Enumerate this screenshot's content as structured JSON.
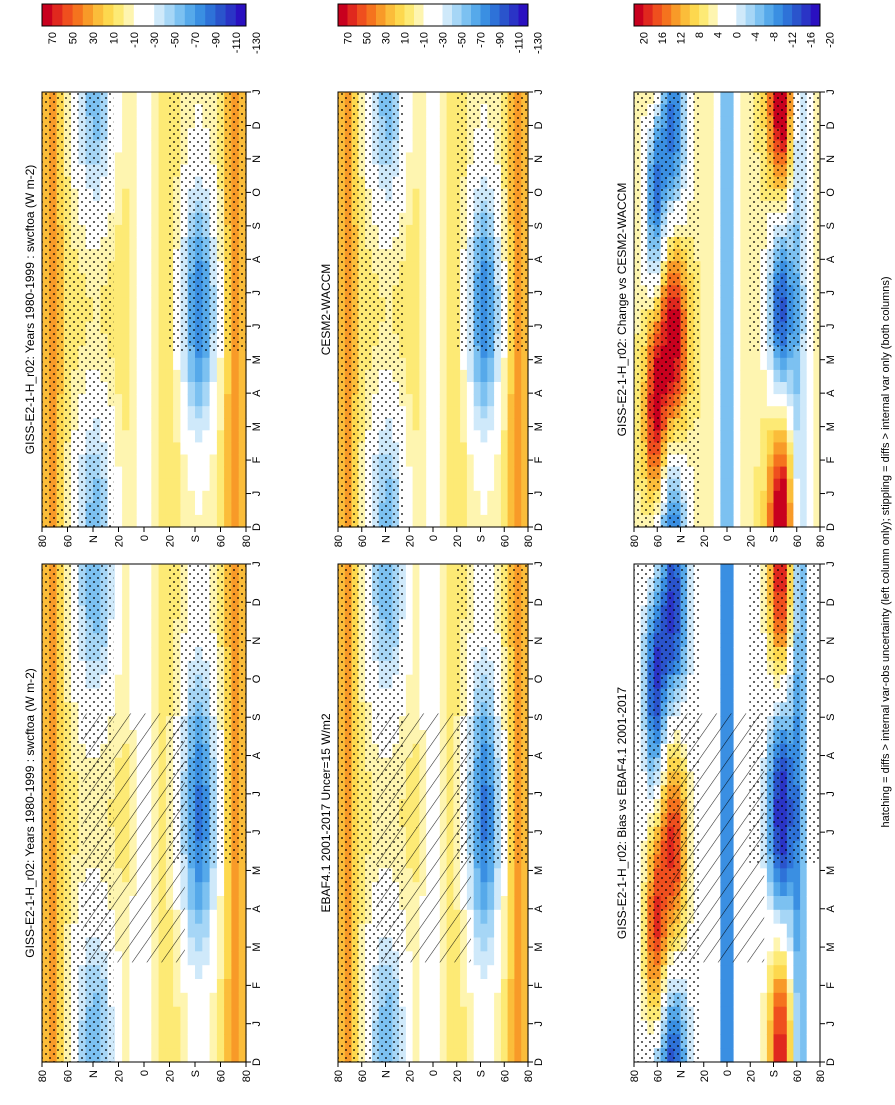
{
  "footnote": "hatching = diffs > internal var-obs uncertainty (left column only); stippling = diffs > internal var only (both columns)",
  "palette": {
    "absolute": [
      "#c8001e",
      "#e0281e",
      "#ef4f1e",
      "#f5731e",
      "#f89a28",
      "#fbbd3a",
      "#fdd84e",
      "#fdea75",
      "#fef5b0",
      "#ffffff",
      "#ffffff",
      "#cfe9fa",
      "#a6d6f6",
      "#7cc1f1",
      "#56a9ea",
      "#3a8fe2",
      "#2e72d8",
      "#2a54cc",
      "#2a34c6",
      "#2a10c0"
    ],
    "difference": [
      "#c8001e",
      "#e0281e",
      "#ef4f1e",
      "#f5731e",
      "#f89a28",
      "#fbbd3a",
      "#fdd84e",
      "#fdea75",
      "#fef5b0",
      "#ffffff",
      "#ffffff",
      "#cfe9fa",
      "#a6d6f6",
      "#7cc1f1",
      "#56a9ea",
      "#3a8fe2",
      "#2e72d8",
      "#2a54cc",
      "#2a34c6",
      "#2a10c0"
    ]
  },
  "chart_data": [
    {
      "id": "panel-model-left",
      "type": "heatmap",
      "title": "GISS-E2-1-H_r02: Years 1980-1999 : swcftoa (W m-2)",
      "x": [
        "D",
        "J",
        "F",
        "M",
        "A",
        "M",
        "J",
        "J",
        "A",
        "S",
        "O",
        "N",
        "D",
        "J"
      ],
      "y_ticks": [
        "80",
        "60",
        "N",
        "20",
        "0",
        "20",
        "S",
        "60",
        "80"
      ],
      "colorbar": {
        "labels": [
          "70",
          "50",
          "30",
          "10",
          "-10",
          "-30",
          "-50",
          "-70",
          "-90",
          "-110",
          "-130"
        ],
        "palette": "absolute"
      },
      "grid": false,
      "hatching": true,
      "stippling": true
    },
    {
      "id": "panel-model-right",
      "type": "heatmap",
      "title": "GISS-E2-1-H_r02: Years 1980-1999 : swcftoa (W m-2)",
      "x": [
        "D",
        "J",
        "F",
        "M",
        "A",
        "M",
        "J",
        "J",
        "A",
        "S",
        "O",
        "N",
        "D",
        "J"
      ],
      "y_ticks": [
        "80",
        "60",
        "N",
        "20",
        "0",
        "20",
        "S",
        "60",
        "80"
      ],
      "colorbar": {
        "labels": [
          "70",
          "50",
          "30",
          "10",
          "-10",
          "-30",
          "-50",
          "-70",
          "-90",
          "-110",
          "-130"
        ],
        "palette": "absolute"
      },
      "grid": false,
      "hatching": false,
      "stippling": true
    },
    {
      "id": "panel-obs",
      "type": "heatmap",
      "title": "EBAF4.1 2001-2017 Uncer=15 W/m2",
      "x": [
        "D",
        "J",
        "F",
        "M",
        "A",
        "M",
        "J",
        "J",
        "A",
        "S",
        "O",
        "N",
        "D",
        "J"
      ],
      "y_ticks": [
        "80",
        "60",
        "N",
        "20",
        "0",
        "20",
        "S",
        "60",
        "80"
      ],
      "colorbar": {
        "labels": [
          "70",
          "50",
          "30",
          "10",
          "-10",
          "-30",
          "-50",
          "-70",
          "-90",
          "-110",
          "-130"
        ],
        "palette": "absolute"
      },
      "grid": false,
      "hatching": true,
      "stippling": true
    },
    {
      "id": "panel-ref-model",
      "type": "heatmap",
      "title": "CESM2-WACCM",
      "x": [
        "D",
        "J",
        "F",
        "M",
        "A",
        "M",
        "J",
        "J",
        "A",
        "S",
        "O",
        "N",
        "D",
        "J"
      ],
      "y_ticks": [
        "80",
        "60",
        "N",
        "20",
        "0",
        "20",
        "S",
        "60",
        "80"
      ],
      "colorbar": {
        "labels": [
          "70",
          "50",
          "30",
          "10",
          "-10",
          "-30",
          "-50",
          "-70",
          "-90",
          "-110",
          "-130"
        ],
        "palette": "absolute"
      },
      "grid": false,
      "hatching": false,
      "stippling": true
    },
    {
      "id": "panel-bias",
      "type": "heatmap",
      "title": "GISS-E2-1-H_r02: Bias vs EBAF4.1 2001-2017",
      "x": [
        "D",
        "J",
        "F",
        "M",
        "A",
        "M",
        "J",
        "J",
        "A",
        "S",
        "O",
        "N",
        "D",
        "J"
      ],
      "y_ticks": [
        "80",
        "60",
        "N",
        "20",
        "0",
        "20",
        "S",
        "60",
        "80"
      ],
      "colorbar": {
        "labels": [
          "20",
          "16",
          "12",
          "8",
          "4",
          "0",
          "-4",
          "-8",
          "-12",
          "-16",
          "-20"
        ],
        "palette": "difference"
      },
      "grid": false,
      "hatching": true,
      "stippling": true
    },
    {
      "id": "panel-change",
      "type": "heatmap",
      "title": "GISS-E2-1-H_r02: Change vs CESM2-WACCM",
      "x": [
        "D",
        "J",
        "F",
        "M",
        "A",
        "M",
        "J",
        "J",
        "A",
        "S",
        "O",
        "N",
        "D",
        "J"
      ],
      "y_ticks": [
        "80",
        "60",
        "N",
        "20",
        "0",
        "20",
        "S",
        "60",
        "80"
      ],
      "colorbar": {
        "labels": [
          "20",
          "16",
          "12",
          "8",
          "4",
          "0",
          "-4",
          "-8",
          "-12",
          "-16",
          "-20"
        ],
        "palette": "difference"
      },
      "grid": false,
      "hatching": false,
      "stippling": true
    }
  ]
}
